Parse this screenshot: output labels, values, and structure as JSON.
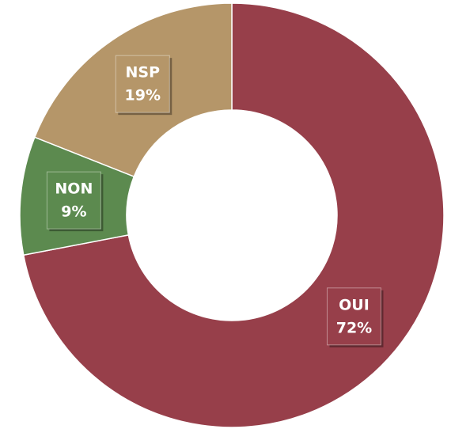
{
  "chart_data": {
    "type": "pie",
    "donut": true,
    "categories": [
      "OUI",
      "NON",
      "NSP"
    ],
    "values": [
      72,
      9,
      19
    ],
    "value_labels": [
      "72%",
      "9%",
      "19%"
    ],
    "colors": [
      "#973f4a",
      "#5c8a4f",
      "#b59669"
    ],
    "fragment_text": "on"
  }
}
